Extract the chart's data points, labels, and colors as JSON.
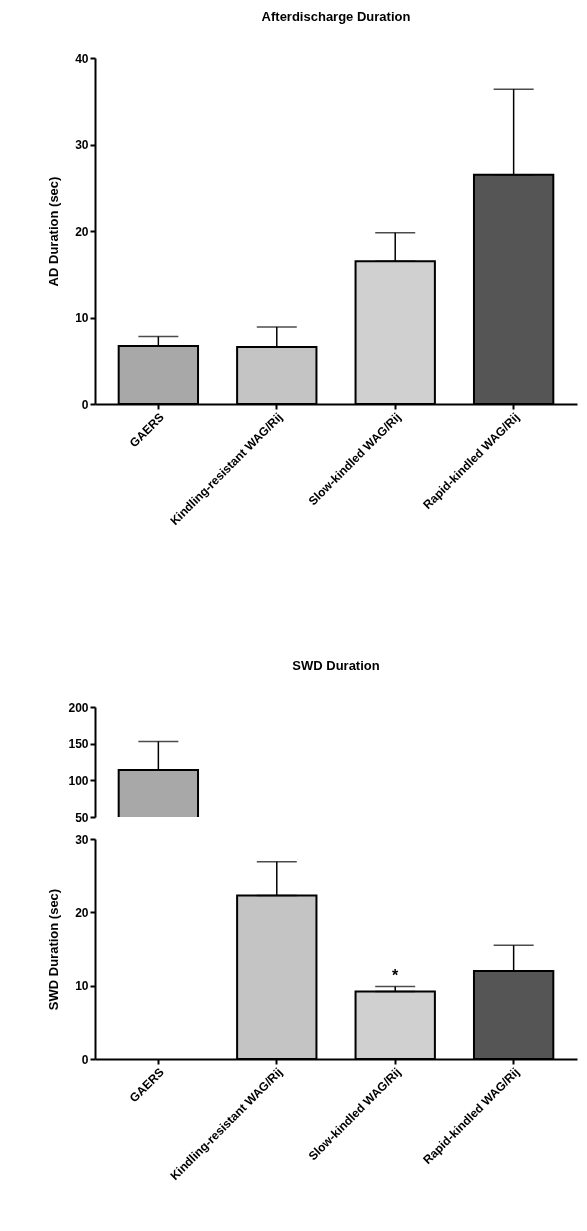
{
  "chart_data": [
    {
      "type": "bar",
      "title": "Afterdischarge Duration",
      "ylabel": "AD Duration (sec)",
      "categories": [
        "GAERS",
        "Kindling-resistant WAG/Rij",
        "Slow-kindled WAG/Rij",
        "Rapid-kindled WAG/Rij"
      ],
      "values": [
        6.7,
        6.6,
        16.5,
        26.5
      ],
      "errors": [
        1.1,
        2.3,
        3.3,
        9.9
      ],
      "colors": [
        "#a8a8a8",
        "#c4c4c4",
        "#d0d0d0",
        "#555555"
      ],
      "ylim": [
        0,
        40
      ],
      "yticks": [
        0,
        10,
        20,
        30,
        40
      ]
    },
    {
      "type": "bar",
      "title": "SWD Duration",
      "values": [
        114,
        null,
        null,
        null
      ],
      "errors": [
        39,
        null,
        null,
        null
      ],
      "colors": [
        "#a8a8a8",
        "#c4c4c4",
        "#d0d0d0",
        "#555555"
      ],
      "ylim": [
        50,
        200
      ],
      "yticks": [
        50,
        100,
        150,
        200
      ],
      "tick_labels": "y"
    },
    {
      "type": "bar",
      "ylabel": "SWD Duration (sec)",
      "categories": [
        "GAERS",
        "Kindling-resistant WAG/Rij",
        "Slow-kindled WAG/Rij",
        "Rapid-kindled WAG/Rij"
      ],
      "values": [
        null,
        22.3,
        9.2,
        12.0
      ],
      "errors": [
        null,
        4.6,
        0.7,
        3.5
      ],
      "colors": [
        "#a8a8a8",
        "#c4c4c4",
        "#d0d0d0",
        "#555555"
      ],
      "ylim": [
        0,
        30
      ],
      "yticks": [
        0,
        10,
        20,
        30
      ],
      "annotations": [
        {
          "text": "*",
          "x": "Slow-kindled WAG/Rij",
          "y": 9.9
        }
      ]
    }
  ]
}
